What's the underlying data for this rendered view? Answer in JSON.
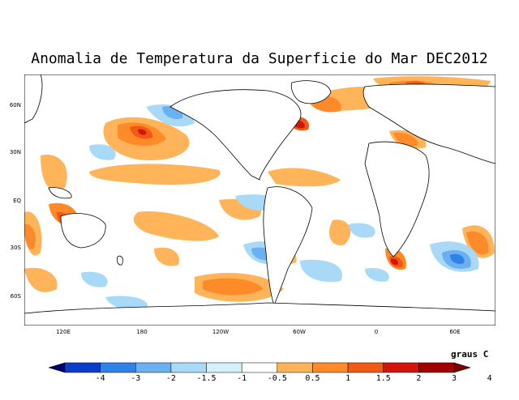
{
  "title": "Anomalia de Temperatura da Superficie do Mar DEC2012",
  "units": "graus C",
  "y_ticks": [
    "60N",
    "30N",
    "EQ",
    "30S",
    "60S"
  ],
  "x_ticks": [
    "120E",
    "180",
    "120W",
    "60W",
    "0",
    "60E"
  ],
  "legend": {
    "labels": [
      "-4",
      "-3",
      "-2",
      "-1.5",
      "-1",
      "-0.5",
      "0.5",
      "1",
      "1.5",
      "2",
      "3",
      "4"
    ],
    "colors": [
      "#00006a",
      "#0a3dc8",
      "#2f82e6",
      "#6bb1f2",
      "#a8d9f7",
      "#d4f0fb",
      "#ffffff",
      "#ffb45a",
      "#ff8a2a",
      "#f05a14",
      "#d2140a",
      "#a00000",
      "#7a0000"
    ]
  },
  "colors": {
    "warm_light": "#ffb45a",
    "warm_mid": "#ff8a2a",
    "warm_strong": "#f05a14",
    "hot": "#d2140a",
    "cool_light": "#a8d9f7",
    "cool_mid": "#6bb1f2",
    "cool_strong": "#2f82e6"
  }
}
